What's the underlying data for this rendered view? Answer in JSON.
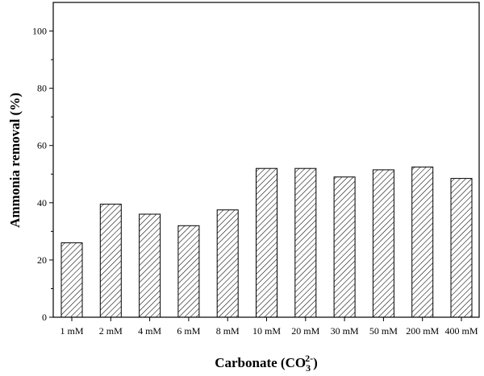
{
  "chart_data": {
    "type": "bar",
    "categories": [
      "1 mM",
      "2 mM",
      "4 mM",
      "6 mM",
      "8 mM",
      "10 mM",
      "20 mM",
      "30 mM",
      "50 mM",
      "200 mM",
      "400 mM"
    ],
    "values": [
      26,
      39.5,
      36,
      32,
      37.5,
      52,
      52,
      49,
      51.5,
      52.5,
      48.5
    ],
    "xlabel": "Carbonate (CO",
    "xlabel_subscript": "3",
    "xlabel_superscript": "2-",
    "xlabel_close": ")",
    "ylabel": "Ammonia removal (%)",
    "ylim": [
      0,
      110
    ],
    "yticks": [
      "0",
      "20",
      "40",
      "60",
      "80",
      "100"
    ],
    "colors": {
      "bar_fill": "#ffffff",
      "bar_hatch": "#000000",
      "axis": "#000000"
    },
    "grid": false,
    "legend": "none"
  }
}
